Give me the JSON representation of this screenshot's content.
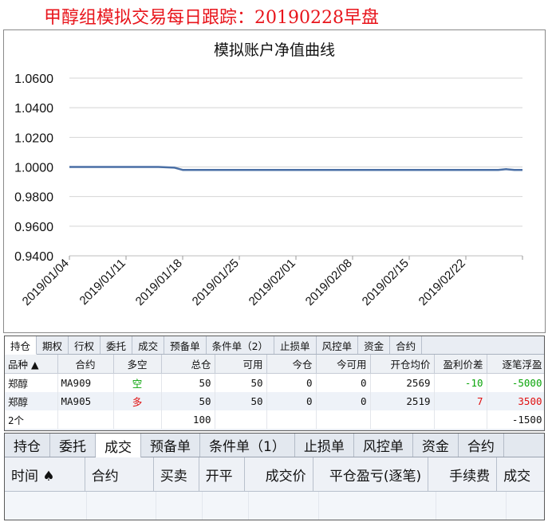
{
  "page": {
    "title": "甲醇组模拟交易每日跟踪：20190228早盘"
  },
  "chart_data": {
    "type": "line",
    "title": "模拟账户净值曲线",
    "xlabel": "",
    "ylabel": "",
    "ylim": [
      0.94,
      1.06
    ],
    "yticks": [
      "1.0600",
      "1.0400",
      "1.0200",
      "1.0000",
      "0.9800",
      "0.9600",
      "0.9400"
    ],
    "xticks": [
      "2019/01/04",
      "2019/01/11",
      "2019/01/18",
      "2019/01/25",
      "2019/02/01",
      "2019/02/08",
      "2019/02/15",
      "2019/02/22"
    ],
    "grid": true,
    "series": [
      {
        "color": "#4a6fa5",
        "points": [
          [
            "2019/01/04",
            1.0
          ],
          [
            "2019/01/11",
            1.0
          ],
          [
            "2019/01/15",
            1.0
          ],
          [
            "2019/01/17",
            0.9995
          ],
          [
            "2019/01/18",
            0.998
          ],
          [
            "2019/01/25",
            0.998
          ],
          [
            "2019/02/01",
            0.998
          ],
          [
            "2019/02/08",
            0.998
          ],
          [
            "2019/02/15",
            0.998
          ],
          [
            "2019/02/22",
            0.998
          ],
          [
            "2019/02/26",
            0.998
          ],
          [
            "2019/02/27",
            0.9985
          ],
          [
            "2019/02/28",
            0.998
          ],
          [
            "2019/03/01",
            0.998
          ]
        ]
      }
    ]
  },
  "positions": {
    "tabs": [
      {
        "label": "持仓",
        "active": true
      },
      {
        "label": "期权",
        "active": false
      },
      {
        "label": "行权",
        "active": false
      },
      {
        "label": "委托",
        "active": false
      },
      {
        "label": "成交",
        "active": false
      },
      {
        "label": "预备单",
        "active": false
      },
      {
        "label": "条件单（2）",
        "active": false
      },
      {
        "label": "止损单",
        "active": false
      },
      {
        "label": "风控单",
        "active": false
      },
      {
        "label": "资金",
        "active": false
      },
      {
        "label": "合约",
        "active": false
      }
    ],
    "columns": [
      "品种 ▲",
      "合约",
      "多空",
      "总仓",
      "可用",
      "今仓",
      "今可用",
      "开仓均价",
      "盈利价差",
      "逐笔浮盈"
    ],
    "rows": [
      {
        "variety": "郑醇",
        "contract": "MA909",
        "side": "空",
        "side_color": "#08a408",
        "total": "50",
        "avail": "50",
        "today": "0",
        "today_avail": "0",
        "avg_price": "2569",
        "spread": "-10",
        "spread_color": "#08a408",
        "float_pl": "-5000",
        "float_color": "#08a408"
      },
      {
        "variety": "郑醇",
        "contract": "MA905",
        "side": "多",
        "side_color": "#e01010",
        "total": "50",
        "avail": "50",
        "today": "0",
        "today_avail": "0",
        "avg_price": "2519",
        "spread": "7",
        "spread_color": "#e01010",
        "float_pl": "3500",
        "float_color": "#e01010"
      }
    ],
    "summary": {
      "count": "2个",
      "total": "100",
      "float_pl": "-1500"
    }
  },
  "trades": {
    "tabs": [
      {
        "label": "持仓",
        "active": false
      },
      {
        "label": "委托",
        "active": false
      },
      {
        "label": "成交",
        "active": true
      },
      {
        "label": "预备单",
        "active": false
      },
      {
        "label": "条件单（1）",
        "active": false
      },
      {
        "label": "止损单",
        "active": false
      },
      {
        "label": "风控单",
        "active": false
      },
      {
        "label": "资金",
        "active": false
      },
      {
        "label": "合约",
        "active": false
      }
    ],
    "columns": [
      "时间 ♠",
      "合约",
      "买卖",
      "开平",
      "成交价",
      "平仓盈亏(逐笔)",
      "手续费",
      "成交"
    ]
  }
}
